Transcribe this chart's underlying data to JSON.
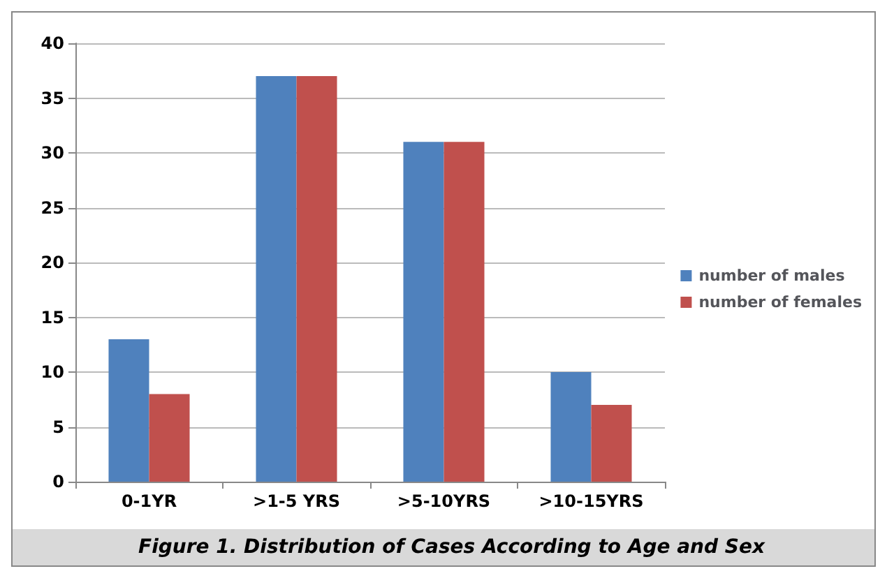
{
  "chart_data": {
    "type": "bar",
    "categories": [
      "0-1YR",
      ">1-5 YRS",
      ">5-10YRS",
      ">10-15YRS"
    ],
    "series": [
      {
        "name": "number of males",
        "color": "#4f81bd",
        "values": [
          13,
          37,
          31,
          10
        ]
      },
      {
        "name": "number of females",
        "color": "#c0504d",
        "values": [
          8,
          37,
          31,
          7
        ]
      }
    ],
    "ylim": [
      0,
      40
    ],
    "yticks": [
      0,
      5,
      10,
      15,
      20,
      25,
      30,
      35,
      40
    ],
    "grid": "y",
    "legend": "right",
    "annotations": [
      "Figure 1. Distribution of Cases According to Age and Sex"
    ]
  }
}
